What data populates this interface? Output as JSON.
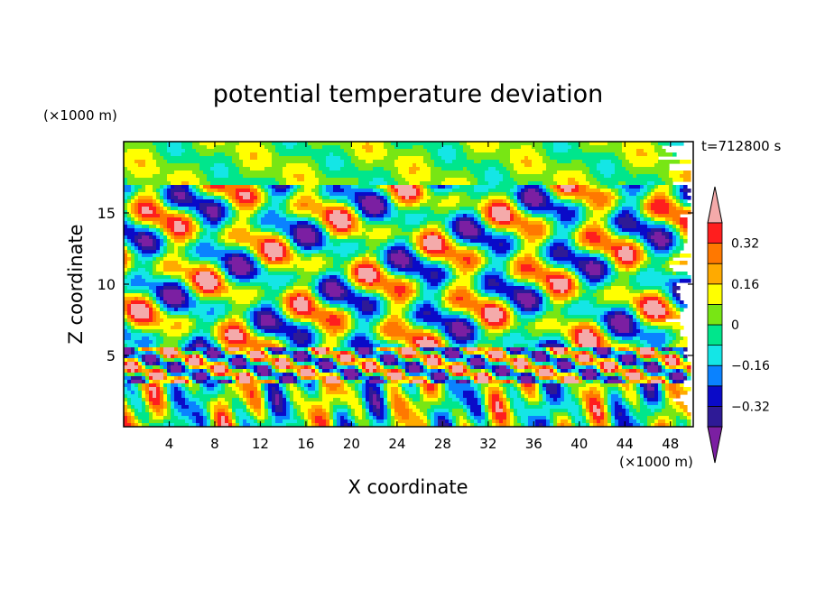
{
  "chart_data": {
    "type": "heatmap",
    "title": "potential temperature deviation",
    "xlabel": "X coordinate",
    "ylabel": "Z coordinate",
    "x_unit_label": "(×1000 m)",
    "y_unit_label": "(×1000 m)",
    "time_label": "t=712800 s",
    "xlim": [
      0,
      50
    ],
    "ylim": [
      0,
      20
    ],
    "x_ticks": [
      4,
      8,
      12,
      16,
      20,
      24,
      28,
      32,
      36,
      40,
      44,
      48
    ],
    "y_ticks": [
      5,
      10,
      15
    ],
    "colorbar": {
      "levels": [
        -0.4,
        -0.32,
        -0.24,
        -0.16,
        -0.08,
        0,
        0.08,
        0.16,
        0.24,
        0.32,
        0.4
      ],
      "labeled_levels": [
        "0.32",
        "0.16",
        "0",
        "−0.16",
        "−0.32"
      ],
      "labeled_values": [
        0.32,
        0.16,
        0,
        -0.16,
        -0.32
      ],
      "colors": [
        "#7b1fa2",
        "#2e1a96",
        "#0a0ac8",
        "#0a82ff",
        "#14e6e6",
        "#00e68c",
        "#78e614",
        "#ffff00",
        "#ffaa00",
        "#ff7800",
        "#ff1e1e",
        "#f4aaaa"
      ],
      "extend": "both"
    }
  }
}
